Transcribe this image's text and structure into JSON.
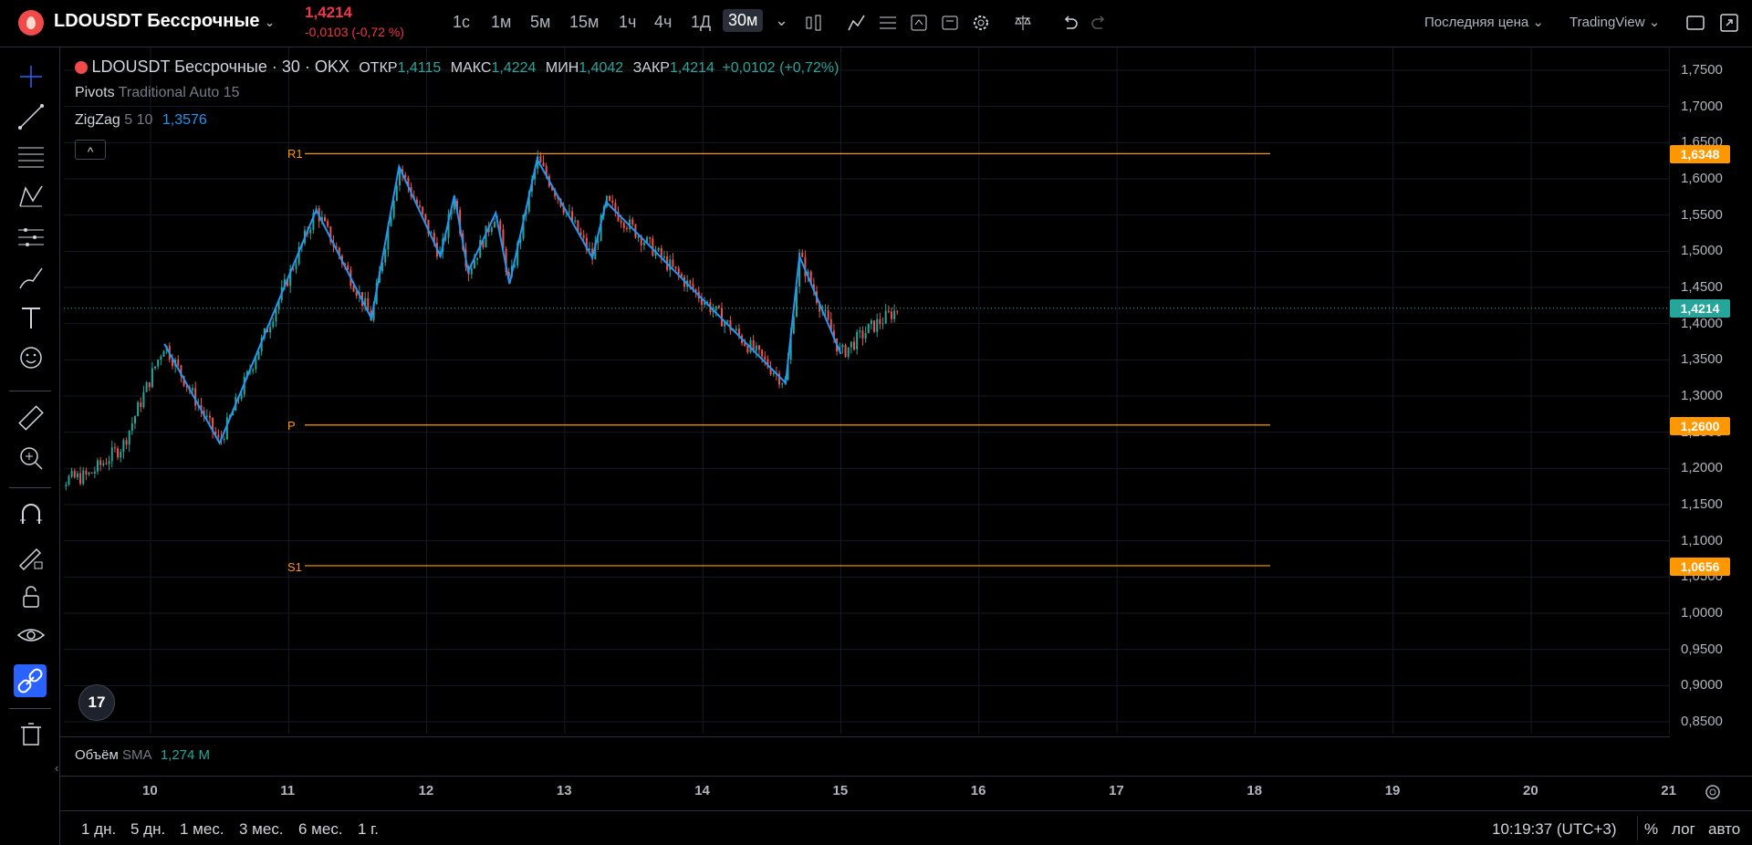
{
  "header": {
    "symbol": "LDOUSDT Бессрочные",
    "last_price": "1,4214",
    "change": "-0,0103 (-0,72 %)",
    "timeframes": [
      "1с",
      "1м",
      "5м",
      "15м",
      "1ч",
      "4ч",
      "1Д",
      "30м"
    ],
    "active_timeframe": "30м",
    "price_type": "Последняя цена",
    "chart_style": "TradingView"
  },
  "legend": {
    "title": "LDOUSDT Бессрочные · 30 · OKX",
    "open_label": "ОТКР",
    "open": "1,4115",
    "high_label": "МАКС",
    "high": "1,4224",
    "low_label": "МИН",
    "low": "1,4042",
    "close_label": "ЗАКР",
    "close": "1,4214",
    "change": "+0,0102 (+0,72%)",
    "pivots_name": "Pivots",
    "pivots_params": "Traditional Auto 15",
    "zigzag_name": "ZigZag",
    "zigzag_params": "5 10",
    "zigzag_value": "1,3576",
    "collapse": "^"
  },
  "pivots": {
    "r1_label": "R1",
    "r1": "1,6348",
    "p_label": "P",
    "p": "1,2600",
    "s1_label": "S1",
    "s1": "1,0656",
    "color": "#ff9800"
  },
  "last_price_badge": "1,4214",
  "price_axis": [
    "1,7500",
    "1,7000",
    "1,6500",
    "1,6000",
    "1,5500",
    "1,5000",
    "1,4500",
    "1,4000",
    "1,3500",
    "1,3000",
    "1,2500",
    "1,2000",
    "1,1500",
    "1,1000",
    "1,0500",
    "1,0000",
    "0,9500",
    "0,9000",
    "0,8500"
  ],
  "time_axis": [
    "10",
    "11",
    "12",
    "13",
    "14",
    "15",
    "16",
    "17",
    "18",
    "19",
    "20",
    "21"
  ],
  "volume": {
    "label": "Объём",
    "sma_label": "SMA",
    "value": "1,274 M"
  },
  "bottom": {
    "ranges": [
      "1 дн.",
      "5 дн.",
      "1 мес.",
      "3 мес.",
      "6 мес.",
      "1 г."
    ],
    "clock": "10:19:37 (UTC+3)",
    "percent": "%",
    "log": "лог",
    "auto": "авто"
  },
  "colors": {
    "up": "#26a69a",
    "down": "#ef5350",
    "zigzag": "#2196f3",
    "pivot": "#ff9800",
    "last_price": "#26a69a",
    "negative": "#f23645"
  },
  "icons": {
    "left_toolbar": [
      "crosshair-icon",
      "trend-line-icon",
      "fib-icon",
      "pattern-icon",
      "forecast-icon",
      "brush-icon",
      "text-icon",
      "emoji-icon",
      "ruler-icon",
      "zoom-in-icon",
      "magnet-icon",
      "lock-draw-icon",
      "unlock-icon",
      "eye-icon",
      "link-icon",
      "trash-icon"
    ]
  },
  "chart_data": {
    "type": "candlestick",
    "zigzag_points": [
      {
        "x": "10,1",
        "y": 1.372
      },
      {
        "x": "10,5",
        "y": 1.235
      },
      {
        "x": "11,2",
        "y": 1.557
      },
      {
        "x": "11,6",
        "y": 1.407
      },
      {
        "x": "11,8",
        "y": 1.617
      },
      {
        "x": "12,1",
        "y": 1.493
      },
      {
        "x": "12,2",
        "y": 1.577
      },
      {
        "x": "12,3",
        "y": 1.472
      },
      {
        "x": "12,5",
        "y": 1.553
      },
      {
        "x": "12,6",
        "y": 1.455
      },
      {
        "x": "12,8",
        "y": 1.627
      },
      {
        "x": "13,2",
        "y": 1.491
      },
      {
        "x": "13,3",
        "y": 1.568
      },
      {
        "x": "14,6",
        "y": 1.318
      },
      {
        "x": "14,7",
        "y": 1.493
      },
      {
        "x": "15,0",
        "y": 1.358
      }
    ],
    "pivot_levels": {
      "R1": 1.6348,
      "P": 1.26,
      "S1": 1.0656
    },
    "last_price": 1.4214,
    "ylim": [
      0.84,
      1.77
    ]
  }
}
